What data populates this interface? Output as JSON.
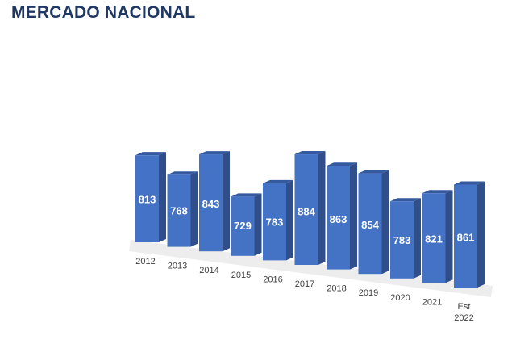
{
  "title": "MERCADO NACIONAL",
  "chart_data": {
    "type": "bar",
    "style": "3d-column",
    "categories": [
      "2012",
      "2013",
      "2014",
      "2015",
      "2016",
      "2017",
      "2018",
      "2019",
      "2020",
      "2021",
      "Est 2022"
    ],
    "values": [
      813,
      768,
      843,
      729,
      783,
      884,
      863,
      854,
      783,
      821,
      861
    ],
    "data_labels": true,
    "colors": {
      "front": "#4472c4",
      "side": "#2f4e8a",
      "top": "#35599e",
      "floor": "#e8e8e8"
    },
    "grid": false,
    "legend": "none"
  }
}
